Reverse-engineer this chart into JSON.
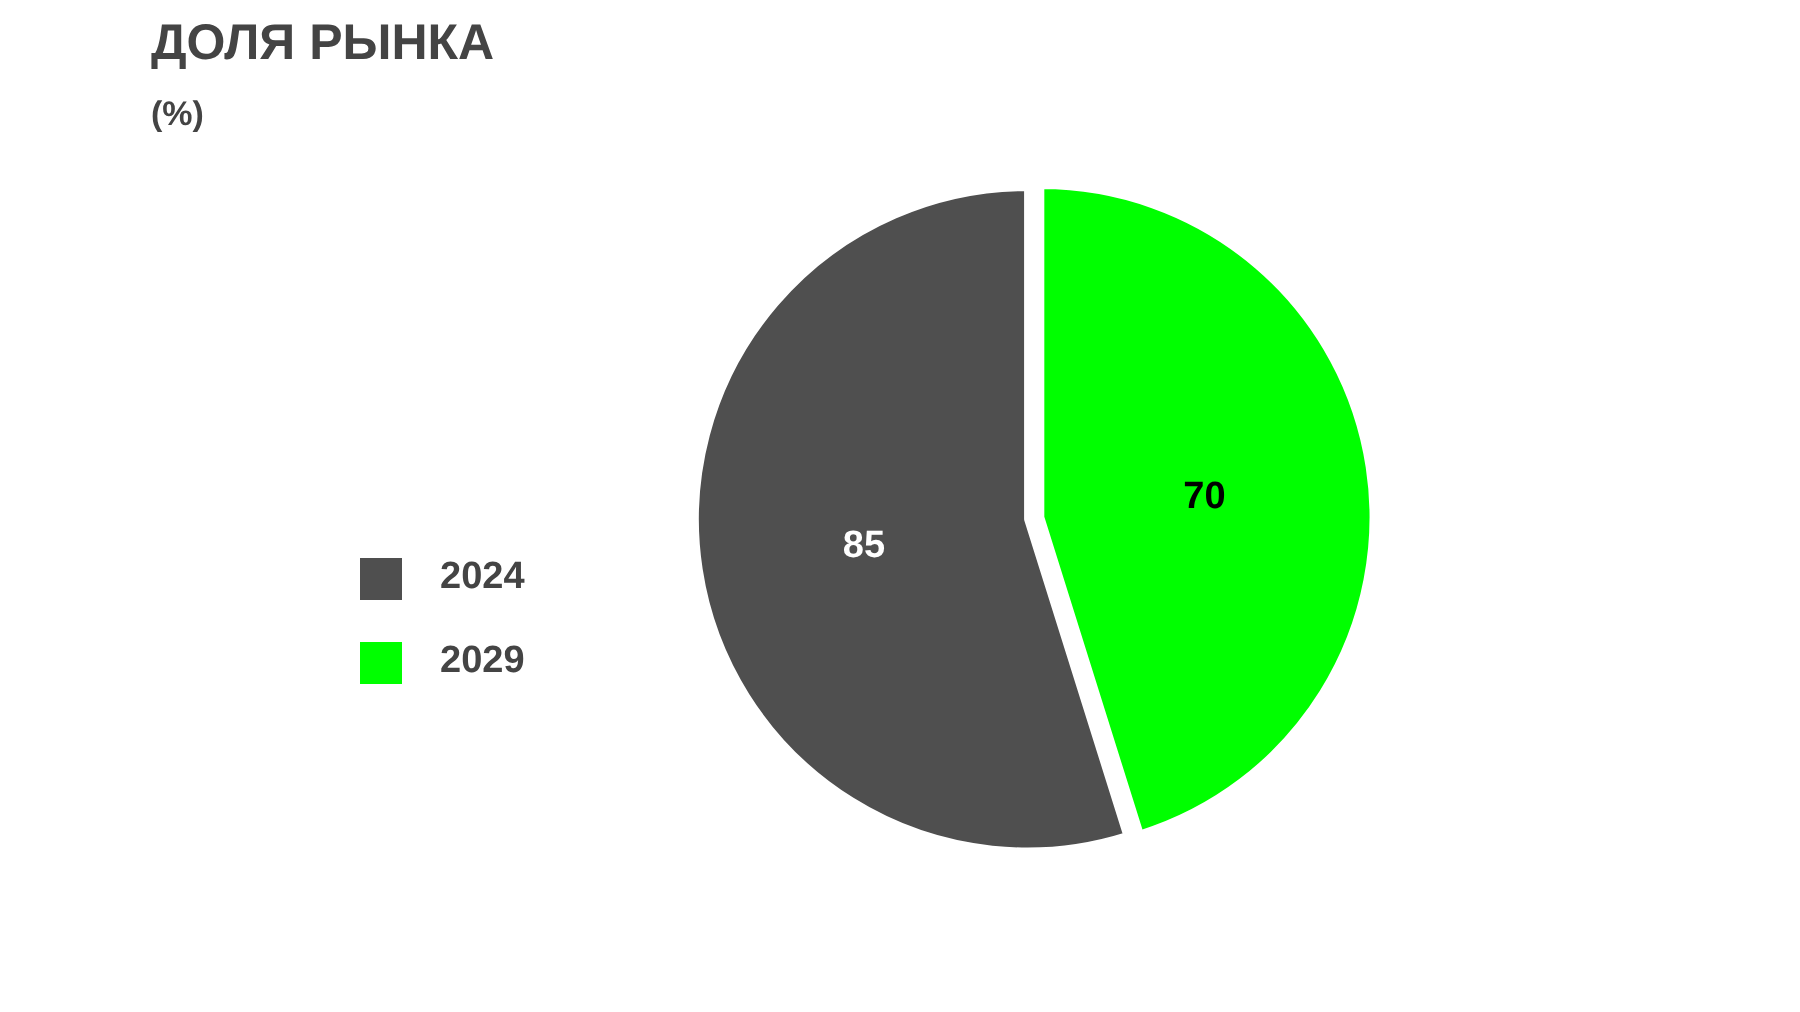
{
  "chart_data": {
    "type": "pie",
    "title": "ДОЛЯ РЫНКА",
    "subtitle": "(%)",
    "categories": [
      "2024",
      "2029"
    ],
    "values": [
      85,
      70
    ],
    "colors": [
      "#4f4f4f",
      "#00ff00"
    ],
    "data_labels": true,
    "legend": "left"
  }
}
